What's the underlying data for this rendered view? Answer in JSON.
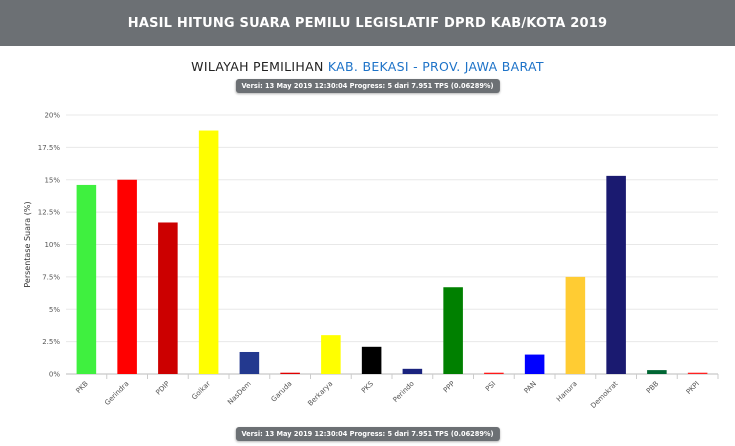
{
  "header": {
    "title": "HASIL HITUNG SUARA PEMILU LEGISLATIF DPRD KAB/KOTA 2019"
  },
  "subtitle": {
    "prefix": "WILAYAH PEMILIHAN",
    "region": "KAB. BEKASI - PROV. JAWA BARAT"
  },
  "version_badge": "Versi: 13 May 2019 12:30:04 Progress: 5 dari 7.951 TPS (0.06289%)",
  "colors": {
    "header_bg": "#6c7074",
    "region_link": "#1e73c8"
  },
  "chart_data": {
    "type": "bar",
    "ylabel": "Persentase Suara (%)",
    "ylim": [
      0,
      20
    ],
    "yticks": [
      "0%",
      "2.5%",
      "5%",
      "7.5%",
      "10%",
      "12.5%",
      "15%",
      "17.5%",
      "20%"
    ],
    "grid": true,
    "categories": [
      "PKB",
      "Gerindra",
      "PDIP",
      "Golkar",
      "NasDem",
      "Garuda",
      "Berkarya",
      "PKS",
      "Perindo",
      "PPP",
      "PSI",
      "PAN",
      "Hanura",
      "Demokrat",
      "PBB",
      "PKPI"
    ],
    "values": [
      14.6,
      15.0,
      11.7,
      18.8,
      1.7,
      0.1,
      3.0,
      2.1,
      0.4,
      6.7,
      0.1,
      1.5,
      7.5,
      15.3,
      0.3,
      0.1
    ],
    "bar_colors": [
      "#3ff03f",
      "#ff0000",
      "#cc0000",
      "#ffff00",
      "#23398f",
      "#e00000",
      "#ffff00",
      "#000000",
      "#1a237e",
      "#008000",
      "#ff1a1a",
      "#0000ff",
      "#ffcc33",
      "#1a1a70",
      "#006633",
      "#ff2222"
    ]
  }
}
